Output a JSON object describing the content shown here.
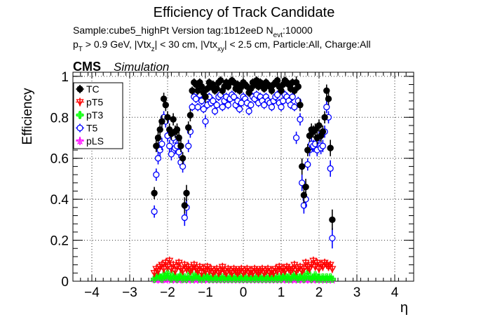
{
  "chart_data": {
    "type": "scatter",
    "title": "Efficiency of Track Candidate",
    "subtitle_line1": "Sample:cube5_highPt   Version tag:1b12eeD  N",
    "subtitle_line1_sub": "evt",
    "subtitle_line1_end": ":10000",
    "subtitle_line2": {
      "p": "p",
      "p_sub": "T",
      "a": " > 0.9 GeV, |Vtx",
      "a_sub": "z",
      "b": "| < 30 cm, |Vtx",
      "b_sub": "xy",
      "c": "| < 2.5 cm, Particle:All, Charge:All"
    },
    "cms_label": "CMS",
    "simulation_label": "Simulation",
    "xlabel": "η",
    "ylabel": "Efficiency",
    "xlim": [
      -4.5,
      4.5
    ],
    "ylim": [
      0,
      1.02
    ],
    "xticks": [
      -4,
      -3,
      -2,
      -1,
      0,
      1,
      2,
      3,
      4
    ],
    "xtick_labels": [
      "−4",
      "−3",
      "−2",
      "−1",
      "0",
      "1",
      "2",
      "3",
      "4"
    ],
    "yticks": [
      0,
      0.2,
      0.4,
      0.6,
      0.8,
      1
    ],
    "ytick_labels": [
      "0",
      "0.2",
      "0.4",
      "0.6",
      "0.8",
      "1"
    ],
    "grid": true,
    "legend_position": "top-left",
    "series": [
      {
        "name": "TC",
        "color": "#000000",
        "marker": "filled-circle"
      },
      {
        "name": "pT5",
        "color": "#ff0000",
        "marker": "open-triangle-down"
      },
      {
        "name": "pT3",
        "color": "#00ff00",
        "marker": "open-cross"
      },
      {
        "name": "T5",
        "color": "#0000ff",
        "marker": "open-circle"
      },
      {
        "name": "pLS",
        "color": "#ff00ff",
        "marker": "open-star"
      }
    ],
    "eta": [
      -2.35,
      -2.3,
      -2.25,
      -2.2,
      -2.15,
      -2.1,
      -2.05,
      -2.0,
      -1.95,
      -1.9,
      -1.85,
      -1.8,
      -1.75,
      -1.7,
      -1.65,
      -1.6,
      -1.55,
      -1.5,
      -1.45,
      -1.4,
      -1.35,
      -1.3,
      -1.25,
      -1.2,
      -1.15,
      -1.1,
      -1.05,
      -1.0,
      -0.95,
      -0.9,
      -0.85,
      -0.8,
      -0.75,
      -0.7,
      -0.65,
      -0.6,
      -0.55,
      -0.5,
      -0.45,
      -0.4,
      -0.35,
      -0.3,
      -0.25,
      -0.2,
      -0.15,
      -0.1,
      -0.05,
      0.0,
      0.05,
      0.1,
      0.15,
      0.2,
      0.25,
      0.3,
      0.35,
      0.4,
      0.45,
      0.5,
      0.55,
      0.6,
      0.65,
      0.7,
      0.75,
      0.8,
      0.85,
      0.9,
      0.95,
      1.0,
      1.05,
      1.1,
      1.15,
      1.2,
      1.25,
      1.3,
      1.35,
      1.4,
      1.45,
      1.5,
      1.55,
      1.6,
      1.65,
      1.7,
      1.75,
      1.8,
      1.85,
      1.9,
      1.95,
      2.0,
      2.05,
      2.1,
      2.15,
      2.2,
      2.25,
      2.3,
      2.35
    ],
    "tc": [
      0.43,
      0.66,
      0.7,
      0.74,
      0.78,
      0.89,
      0.86,
      0.8,
      0.74,
      0.72,
      0.79,
      0.73,
      0.74,
      0.7,
      0.66,
      0.6,
      0.37,
      0.43,
      0.75,
      0.81,
      0.93,
      0.97,
      0.96,
      0.93,
      0.97,
      0.95,
      0.92,
      0.9,
      0.94,
      0.97,
      0.95,
      0.96,
      0.93,
      0.94,
      0.97,
      0.98,
      0.93,
      0.95,
      0.97,
      0.95,
      0.97,
      0.98,
      0.97,
      0.94,
      0.96,
      0.93,
      0.95,
      0.97,
      0.96,
      0.95,
      0.92,
      0.94,
      0.97,
      0.96,
      0.98,
      0.95,
      0.97,
      0.96,
      0.94,
      0.97,
      0.96,
      0.95,
      0.93,
      0.96,
      0.97,
      0.98,
      0.95,
      0.93,
      0.96,
      0.98,
      0.97,
      0.96,
      0.94,
      0.97,
      0.93,
      0.97,
      0.95,
      0.86,
      0.56,
      0.42,
      0.46,
      0.64,
      0.71,
      0.74,
      0.73,
      0.74,
      0.7,
      0.76,
      0.71,
      0.73,
      0.8,
      0.93,
      0.89,
      0.65,
      0.3
    ],
    "t5": [
      0.34,
      0.52,
      0.6,
      0.64,
      0.67,
      0.8,
      0.78,
      0.71,
      0.66,
      0.62,
      0.7,
      0.65,
      0.66,
      0.63,
      0.58,
      0.56,
      0.31,
      0.36,
      0.66,
      0.73,
      0.85,
      0.9,
      0.89,
      0.85,
      0.91,
      0.88,
      0.84,
      0.78,
      0.86,
      0.9,
      0.87,
      0.88,
      0.83,
      0.86,
      0.9,
      0.91,
      0.85,
      0.88,
      0.9,
      0.86,
      0.89,
      0.91,
      0.9,
      0.86,
      0.88,
      0.84,
      0.87,
      0.9,
      0.89,
      0.87,
      0.83,
      0.86,
      0.9,
      0.89,
      0.91,
      0.87,
      0.9,
      0.88,
      0.86,
      0.9,
      0.88,
      0.87,
      0.85,
      0.88,
      0.9,
      0.91,
      0.87,
      0.85,
      0.88,
      0.91,
      0.9,
      0.88,
      0.86,
      0.9,
      0.85,
      0.7,
      0.88,
      0.79,
      0.48,
      0.37,
      0.4,
      0.57,
      0.64,
      0.67,
      0.66,
      0.67,
      0.64,
      0.7,
      0.65,
      0.66,
      0.73,
      0.85,
      0.8,
      0.55,
      0.21
    ],
    "pt5": [
      0.04,
      0.06,
      0.05,
      0.07,
      0.08,
      0.06,
      0.09,
      0.07,
      0.1,
      0.06,
      0.08,
      0.05,
      0.07,
      0.09,
      0.06,
      0.05,
      0.08,
      0.06,
      0.07,
      0.05,
      0.06,
      0.08,
      0.06,
      0.05,
      0.07,
      0.04,
      0.06,
      0.05,
      0.07,
      0.05,
      0.06,
      0.04,
      0.05,
      0.06,
      0.04,
      0.05,
      0.07,
      0.05,
      0.04,
      0.06,
      0.05,
      0.04,
      0.06,
      0.05,
      0.04,
      0.05,
      0.06,
      0.04,
      0.05,
      0.06,
      0.04,
      0.05,
      0.04,
      0.06,
      0.05,
      0.04,
      0.05,
      0.06,
      0.04,
      0.05,
      0.06,
      0.04,
      0.05,
      0.04,
      0.06,
      0.05,
      0.07,
      0.05,
      0.06,
      0.05,
      0.07,
      0.06,
      0.05,
      0.06,
      0.08,
      0.05,
      0.06,
      0.07,
      0.05,
      0.06,
      0.09,
      0.07,
      0.06,
      0.08,
      0.1,
      0.07,
      0.09,
      0.06,
      0.08,
      0.07,
      0.09,
      0.08,
      0.07,
      0.08,
      0.06
    ],
    "pt3": [
      0.01,
      0.02,
      0.03,
      0.02,
      0.01,
      0.03,
      0.02,
      0.04,
      0.02,
      0.01,
      0.03,
      0.02,
      0.01,
      0.02,
      0.03,
      0.01,
      0.02,
      0.01,
      0.02,
      0.04,
      0.01,
      0.02,
      0.03,
      0.02,
      0.01,
      0.02,
      0.01,
      0.03,
      0.02,
      0.01,
      0.02,
      0.01,
      0.02,
      0.01,
      0.02,
      0.01,
      0.02,
      0.01,
      0.02,
      0.01,
      0.02,
      0.01,
      0.02,
      0.01,
      0.02,
      0.01,
      0.02,
      0.01,
      0.02,
      0.01,
      0.02,
      0.01,
      0.02,
      0.01,
      0.02,
      0.01,
      0.02,
      0.01,
      0.02,
      0.01,
      0.02,
      0.01,
      0.02,
      0.01,
      0.02,
      0.01,
      0.02,
      0.01,
      0.02,
      0.03,
      0.01,
      0.02,
      0.01,
      0.02,
      0.03,
      0.02,
      0.01,
      0.02,
      0.03,
      0.01,
      0.02,
      0.04,
      0.02,
      0.01,
      0.02,
      0.03,
      0.01,
      0.02,
      0.01,
      0.02,
      0.01,
      0.02,
      0.01,
      0.02,
      0.01
    ],
    "pls": [
      0.01,
      0.005,
      0.01,
      0.005,
      0.01,
      0.01,
      0.005,
      0.01,
      0.01,
      0.005,
      0.01,
      0.005,
      0.01,
      0.005,
      0.01,
      0.01,
      0.005,
      0.01,
      0.005,
      0.01,
      0.005,
      0.01,
      0.005,
      0.01,
      0.005,
      0.01,
      0.005,
      0.01,
      0.005,
      0.01,
      0.005,
      0.01,
      0.005,
      0.01,
      0.005,
      0.01,
      0.005,
      0.01,
      0.005,
      0.01,
      0.005,
      0.01,
      0.005,
      0.01,
      0.005,
      0.01,
      0.005,
      0.01,
      0.005,
      0.01,
      0.005,
      0.01,
      0.005,
      0.01,
      0.005,
      0.01,
      0.005,
      0.01,
      0.005,
      0.01,
      0.005,
      0.01,
      0.005,
      0.01,
      0.005,
      0.01,
      0.005,
      0.01,
      0.005,
      0.01,
      0.005,
      0.01,
      0.005,
      0.01,
      0.005,
      0.01,
      0.005,
      0.01,
      0.005,
      0.01,
      0.005,
      0.01,
      0.005,
      0.01,
      0.005,
      0.01,
      0.005,
      0.01,
      0.005,
      0.01,
      0.005,
      0.01,
      0.005,
      0.01,
      0.005
    ],
    "err": [
      0.03,
      0.03,
      0.03,
      0.03,
      0.03,
      0.03,
      0.03,
      0.03,
      0.03,
      0.03,
      0.03,
      0.03,
      0.03,
      0.03,
      0.03,
      0.03,
      0.04,
      0.04,
      0.03,
      0.03,
      0.02,
      0.02,
      0.02,
      0.02,
      0.02,
      0.02,
      0.02,
      0.03,
      0.02,
      0.02,
      0.02,
      0.02,
      0.02,
      0.02,
      0.02,
      0.02,
      0.02,
      0.02,
      0.02,
      0.02,
      0.02,
      0.02,
      0.02,
      0.02,
      0.02,
      0.02,
      0.02,
      0.02,
      0.02,
      0.02,
      0.02,
      0.02,
      0.02,
      0.02,
      0.02,
      0.02,
      0.02,
      0.02,
      0.02,
      0.02,
      0.02,
      0.02,
      0.02,
      0.02,
      0.02,
      0.02,
      0.02,
      0.02,
      0.02,
      0.02,
      0.02,
      0.02,
      0.02,
      0.02,
      0.02,
      0.03,
      0.02,
      0.03,
      0.04,
      0.04,
      0.04,
      0.03,
      0.03,
      0.03,
      0.03,
      0.03,
      0.03,
      0.03,
      0.03,
      0.03,
      0.03,
      0.03,
      0.03,
      0.04,
      0.05
    ]
  }
}
